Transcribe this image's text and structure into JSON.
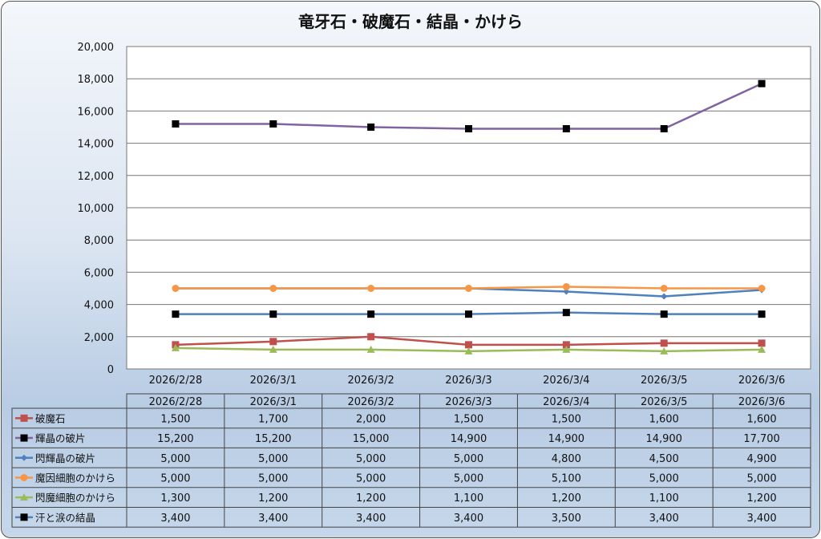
{
  "chart_data": {
    "type": "line",
    "title": "竜牙石・破魔石・結晶・かけら",
    "xlabel": "",
    "ylabel": "",
    "ylim": [
      0,
      20000
    ],
    "yticks": [
      "0",
      "2,000",
      "4,000",
      "6,000",
      "8,000",
      "10,000",
      "12,000",
      "14,000",
      "16,000",
      "18,000",
      "20,000"
    ],
    "grid": true,
    "legend": "data-table",
    "categories": [
      "2026/2/28",
      "2026/3/1",
      "2026/3/2",
      "2026/3/3",
      "2026/3/4",
      "2026/3/5",
      "2026/3/6"
    ],
    "series": [
      {
        "name": "破魔石",
        "values": [
          1500,
          1700,
          2000,
          1500,
          1500,
          1600,
          1600
        ],
        "labels": [
          "1,500",
          "1,700",
          "2,000",
          "1,500",
          "1,500",
          "1,600",
          "1,600"
        ],
        "color": "#C0504D",
        "marker": "square",
        "marker_color": "#C0504D"
      },
      {
        "name": "輝晶の破片",
        "values": [
          15200,
          15200,
          15000,
          14900,
          14900,
          14900,
          17700
        ],
        "labels": [
          "15,200",
          "15,200",
          "15,000",
          "14,900",
          "14,900",
          "14,900",
          "17,700"
        ],
        "color": "#8064A2",
        "marker": "square",
        "marker_color": "#000000"
      },
      {
        "name": "閃輝晶の破片",
        "values": [
          5000,
          5000,
          5000,
          5000,
          4800,
          4500,
          4900
        ],
        "labels": [
          "5,000",
          "5,000",
          "5,000",
          "5,000",
          "4,800",
          "4,500",
          "4,900"
        ],
        "color": "#4F81BD",
        "marker": "diamond",
        "marker_color": "#4F81BD"
      },
      {
        "name": "魔因細胞のかけら",
        "values": [
          5000,
          5000,
          5000,
          5000,
          5100,
          5000,
          5000
        ],
        "labels": [
          "5,000",
          "5,000",
          "5,000",
          "5,000",
          "5,100",
          "5,000",
          "5,000"
        ],
        "color": "#F79646",
        "marker": "circle",
        "marker_color": "#F79646"
      },
      {
        "name": "閃魔細胞のかけら",
        "values": [
          1300,
          1200,
          1200,
          1100,
          1200,
          1100,
          1200
        ],
        "labels": [
          "1,300",
          "1,200",
          "1,200",
          "1,100",
          "1,200",
          "1,100",
          "1,200"
        ],
        "color": "#9BBB59",
        "marker": "triangle",
        "marker_color": "#9BBB59"
      },
      {
        "name": "汗と涙の結晶",
        "values": [
          3400,
          3400,
          3400,
          3400,
          3500,
          3400,
          3400
        ],
        "labels": [
          "3,400",
          "3,400",
          "3,400",
          "3,400",
          "3,500",
          "3,400",
          "3,400"
        ],
        "color": "#4F81BD",
        "marker": "square",
        "marker_color": "#000000"
      }
    ]
  }
}
